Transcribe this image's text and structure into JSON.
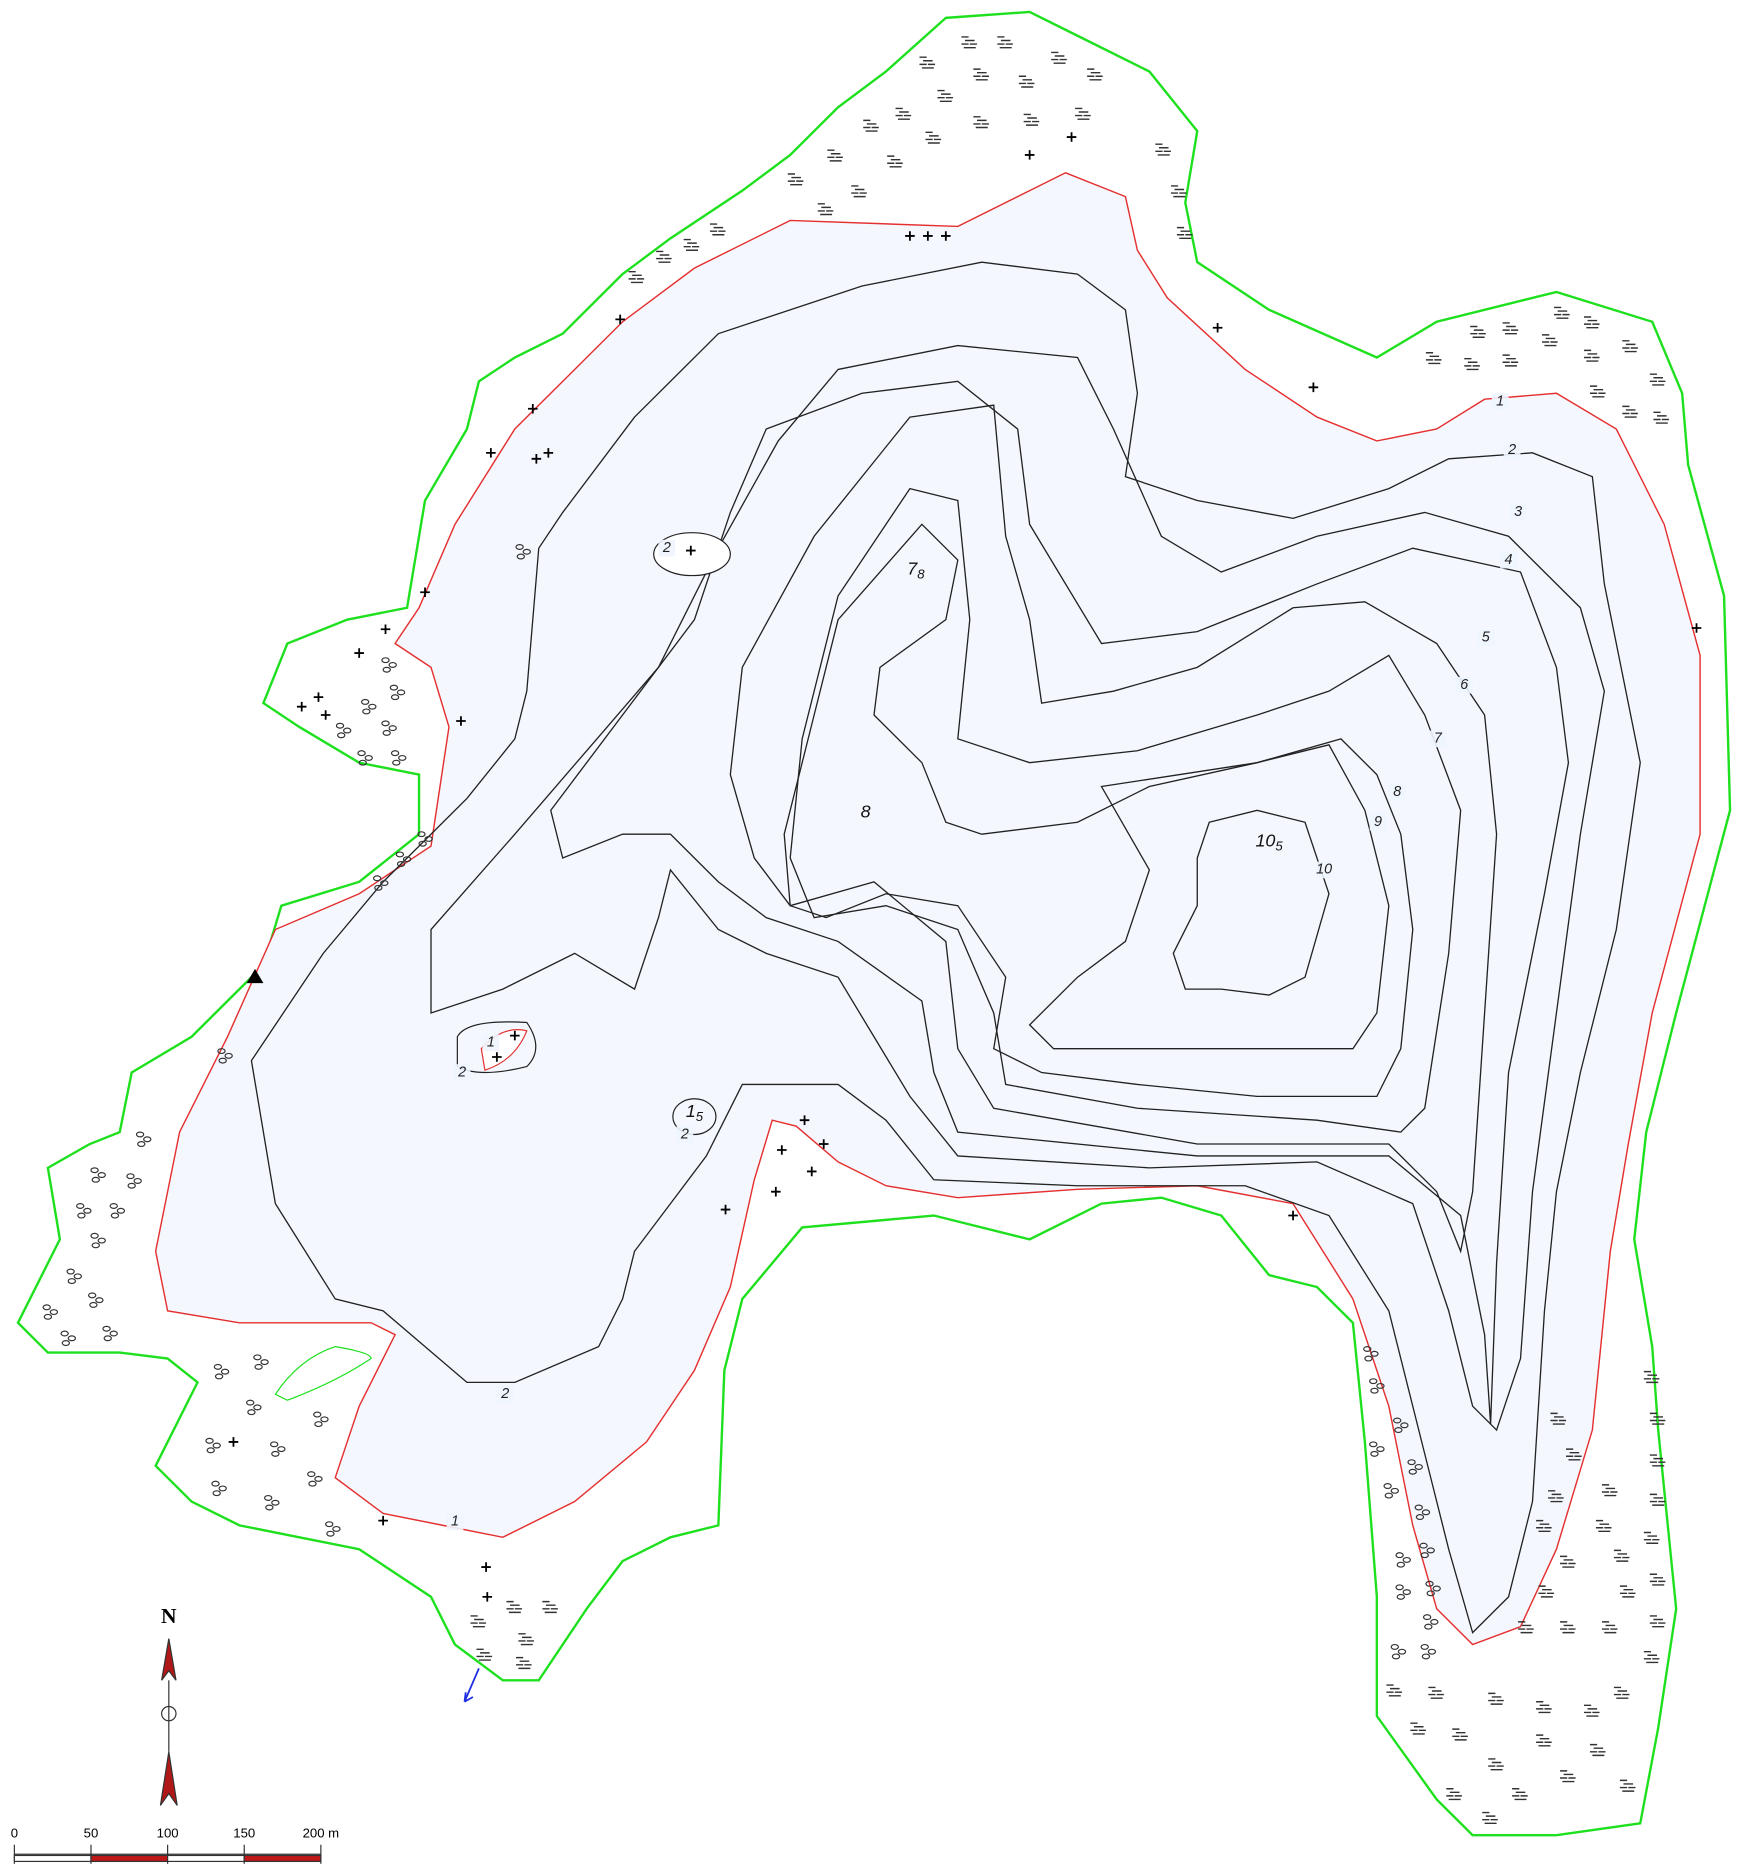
{
  "map": {
    "contour_labels": [
      "1",
      "2",
      "3",
      "4",
      "5",
      "6",
      "7",
      "8",
      "9",
      "10",
      "2",
      "1",
      "2",
      "2",
      "2",
      "1"
    ],
    "spot_depths": [
      {
        "value": "7",
        "sub": "8"
      },
      {
        "value": "8"
      },
      {
        "value": "10",
        "sub": "5"
      },
      {
        "value": "1",
        "sub": "5"
      }
    ],
    "north": "N",
    "scale": {
      "ticks": [
        "0",
        "50",
        "100",
        "150",
        "200 m"
      ]
    }
  }
}
